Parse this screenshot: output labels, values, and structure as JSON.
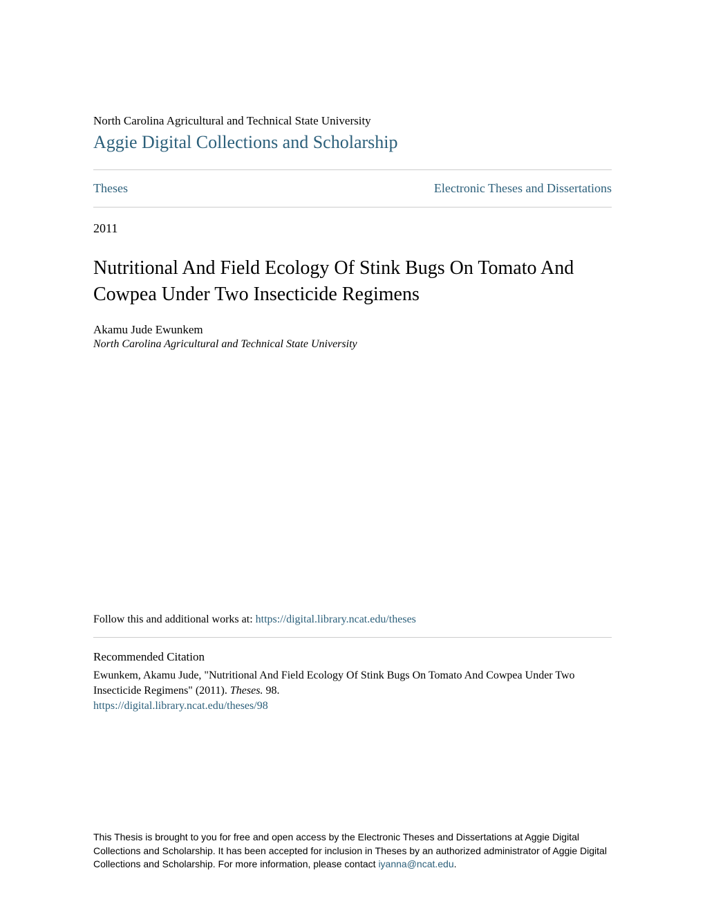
{
  "header": {
    "institution": "North Carolina Agricultural and Technical State University",
    "repository": "Aggie Digital Collections and Scholarship"
  },
  "nav": {
    "left": "Theses",
    "right": "Electronic Theses and Dissertations"
  },
  "metadata": {
    "year": "2011",
    "title": "Nutritional And Field Ecology Of Stink Bugs On Tomato And Cowpea Under Two Insecticide Regimens",
    "author": "Akamu Jude Ewunkem",
    "affiliation": "North Carolina Agricultural and Technical State University"
  },
  "follow": {
    "prefix": "Follow this and additional works at: ",
    "url": "https://digital.library.ncat.edu/theses"
  },
  "citation": {
    "heading": "Recommended Citation",
    "text_prefix": "Ewunkem, Akamu Jude, \"Nutritional And Field Ecology Of Stink Bugs On Tomato And Cowpea Under Two Insecticide Regimens\" (2011). ",
    "text_italic": "Theses.",
    "text_suffix": " 98.",
    "link": "https://digital.library.ncat.edu/theses/98"
  },
  "footer": {
    "text_prefix": "This Thesis is brought to you for free and open access by the Electronic Theses and Dissertations at Aggie Digital Collections and Scholarship. It has been accepted for inclusion in Theses by an authorized administrator of Aggie Digital Collections and Scholarship. For more information, please contact ",
    "email": "iyanna@ncat.edu",
    "text_suffix": "."
  },
  "colors": {
    "link": "#2b5f7a",
    "text": "#000000",
    "divider": "#cccccc",
    "background": "#ffffff"
  },
  "typography": {
    "body_font": "Georgia, Times New Roman, serif",
    "footer_font": "Arial, Helvetica, sans-serif",
    "title_fontsize": 28,
    "repository_fontsize": 26,
    "nav_fontsize": 18,
    "body_fontsize": 16,
    "footer_fontsize": 14
  }
}
